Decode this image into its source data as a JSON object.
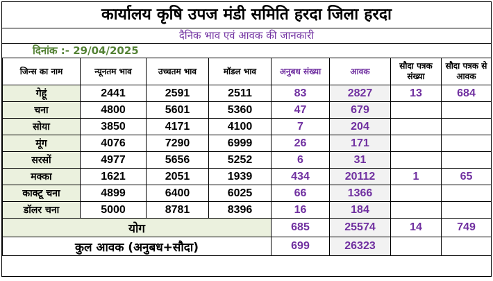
{
  "title": "कार्यालय कृषि उपज मंडी समिति हरदा जिला हरदा",
  "subtitle": "दैनिक भाव एवं आवक की जानकारी",
  "date_label": "दिनांक :- 29/04/2025",
  "columns": [
    "जिन्स का नाम",
    "न्यूनतम भाव",
    "उच्चतम भाव",
    "मॉडल भाव",
    "अनुबध संख्या",
    "आवक",
    "सौदा पत्रक संख्या",
    "सौदा पत्रक से आवक"
  ],
  "rows": [
    {
      "name": "गेहूं",
      "min": "2441",
      "max": "2591",
      "model": "2511",
      "anubandh": "83",
      "aavak": "2827",
      "sauda_count": "13",
      "sauda_aavak": "684"
    },
    {
      "name": "चना",
      "min": "4800",
      "max": "5601",
      "model": "5360",
      "anubandh": "47",
      "aavak": "679",
      "sauda_count": "",
      "sauda_aavak": ""
    },
    {
      "name": "सोया",
      "min": "3850",
      "max": "4171",
      "model": "4100",
      "anubandh": "7",
      "aavak": "204",
      "sauda_count": "",
      "sauda_aavak": ""
    },
    {
      "name": "मूंग",
      "min": "4076",
      "max": "7290",
      "model": "6999",
      "anubandh": "26",
      "aavak": "171",
      "sauda_count": "",
      "sauda_aavak": ""
    },
    {
      "name": "सरसों",
      "min": "4977",
      "max": "5656",
      "model": "5252",
      "anubandh": "6",
      "aavak": "31",
      "sauda_count": "",
      "sauda_aavak": ""
    },
    {
      "name": "मक्का",
      "min": "1621",
      "max": "2051",
      "model": "1939",
      "anubandh": "434",
      "aavak": "20112",
      "sauda_count": "1",
      "sauda_aavak": "65"
    },
    {
      "name": "काक्टू चना",
      "min": "4899",
      "max": "6400",
      "model": "6025",
      "anubandh": "66",
      "aavak": "1366",
      "sauda_count": "",
      "sauda_aavak": ""
    },
    {
      "name": "डॉलर चना",
      "min": "5000",
      "max": "8781",
      "model": "8396",
      "anubandh": "16",
      "aavak": "184",
      "sauda_count": "",
      "sauda_aavak": ""
    }
  ],
  "total": {
    "label": "योग",
    "anubandh": "685",
    "aavak": "25574",
    "sauda_count": "14",
    "sauda_aavak": "749"
  },
  "kul": {
    "label": "कुल आवक (अनुबध+सौदा)",
    "anubandh": "699",
    "aavak": "26323"
  }
}
